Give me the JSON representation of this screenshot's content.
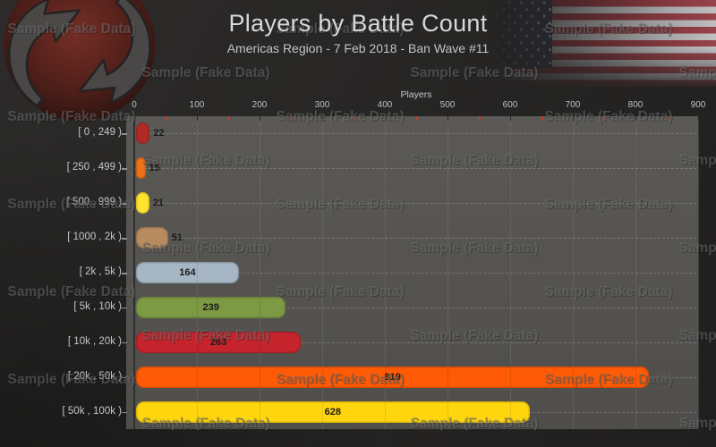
{
  "page": {
    "title": "Players by Battle Count",
    "subtitle": "Americas Region - 7 Feb 2018 - Ban Wave #11",
    "watermark_text": "Sample (Fake Data)"
  },
  "branding": {
    "logo": "wargaming-logo",
    "flag": "us-flag"
  },
  "chart_data": {
    "type": "bar",
    "orientation": "horizontal",
    "title": "Players by Battle Count",
    "subtitle": "Americas Region - 7 Feb 2018 - Ban Wave #11",
    "xlabel": "Players",
    "xlim": [
      0,
      900
    ],
    "x_major_ticks": [
      0,
      100,
      200,
      300,
      400,
      500,
      600,
      700,
      800,
      900
    ],
    "x_minor_tick_step": 50,
    "grid": true,
    "legend": false,
    "categories": [
      "[ 0 , 249 )",
      "[ 250 , 499 )",
      "[ 500 , 999 )",
      "[ 1000 , 2k )",
      "[ 2k , 5k )",
      "[ 5k , 10k )",
      "[ 10k , 20k )",
      "[ 20k , 50k )",
      "[ 50k , 100k )"
    ],
    "values": [
      22,
      15,
      21,
      51,
      164,
      239,
      263,
      819,
      628
    ],
    "bar_colors": [
      "#AE2B26",
      "#ED7119",
      "#FFE130",
      "#B78B60",
      "#A6B6C4",
      "#7C9944",
      "#C5242C",
      "#FF5A05",
      "#FFD60E"
    ],
    "plot_bg": "#565450",
    "minor_tick_color": "#C43C2B",
    "value_label_color": "#1B1B1B"
  }
}
